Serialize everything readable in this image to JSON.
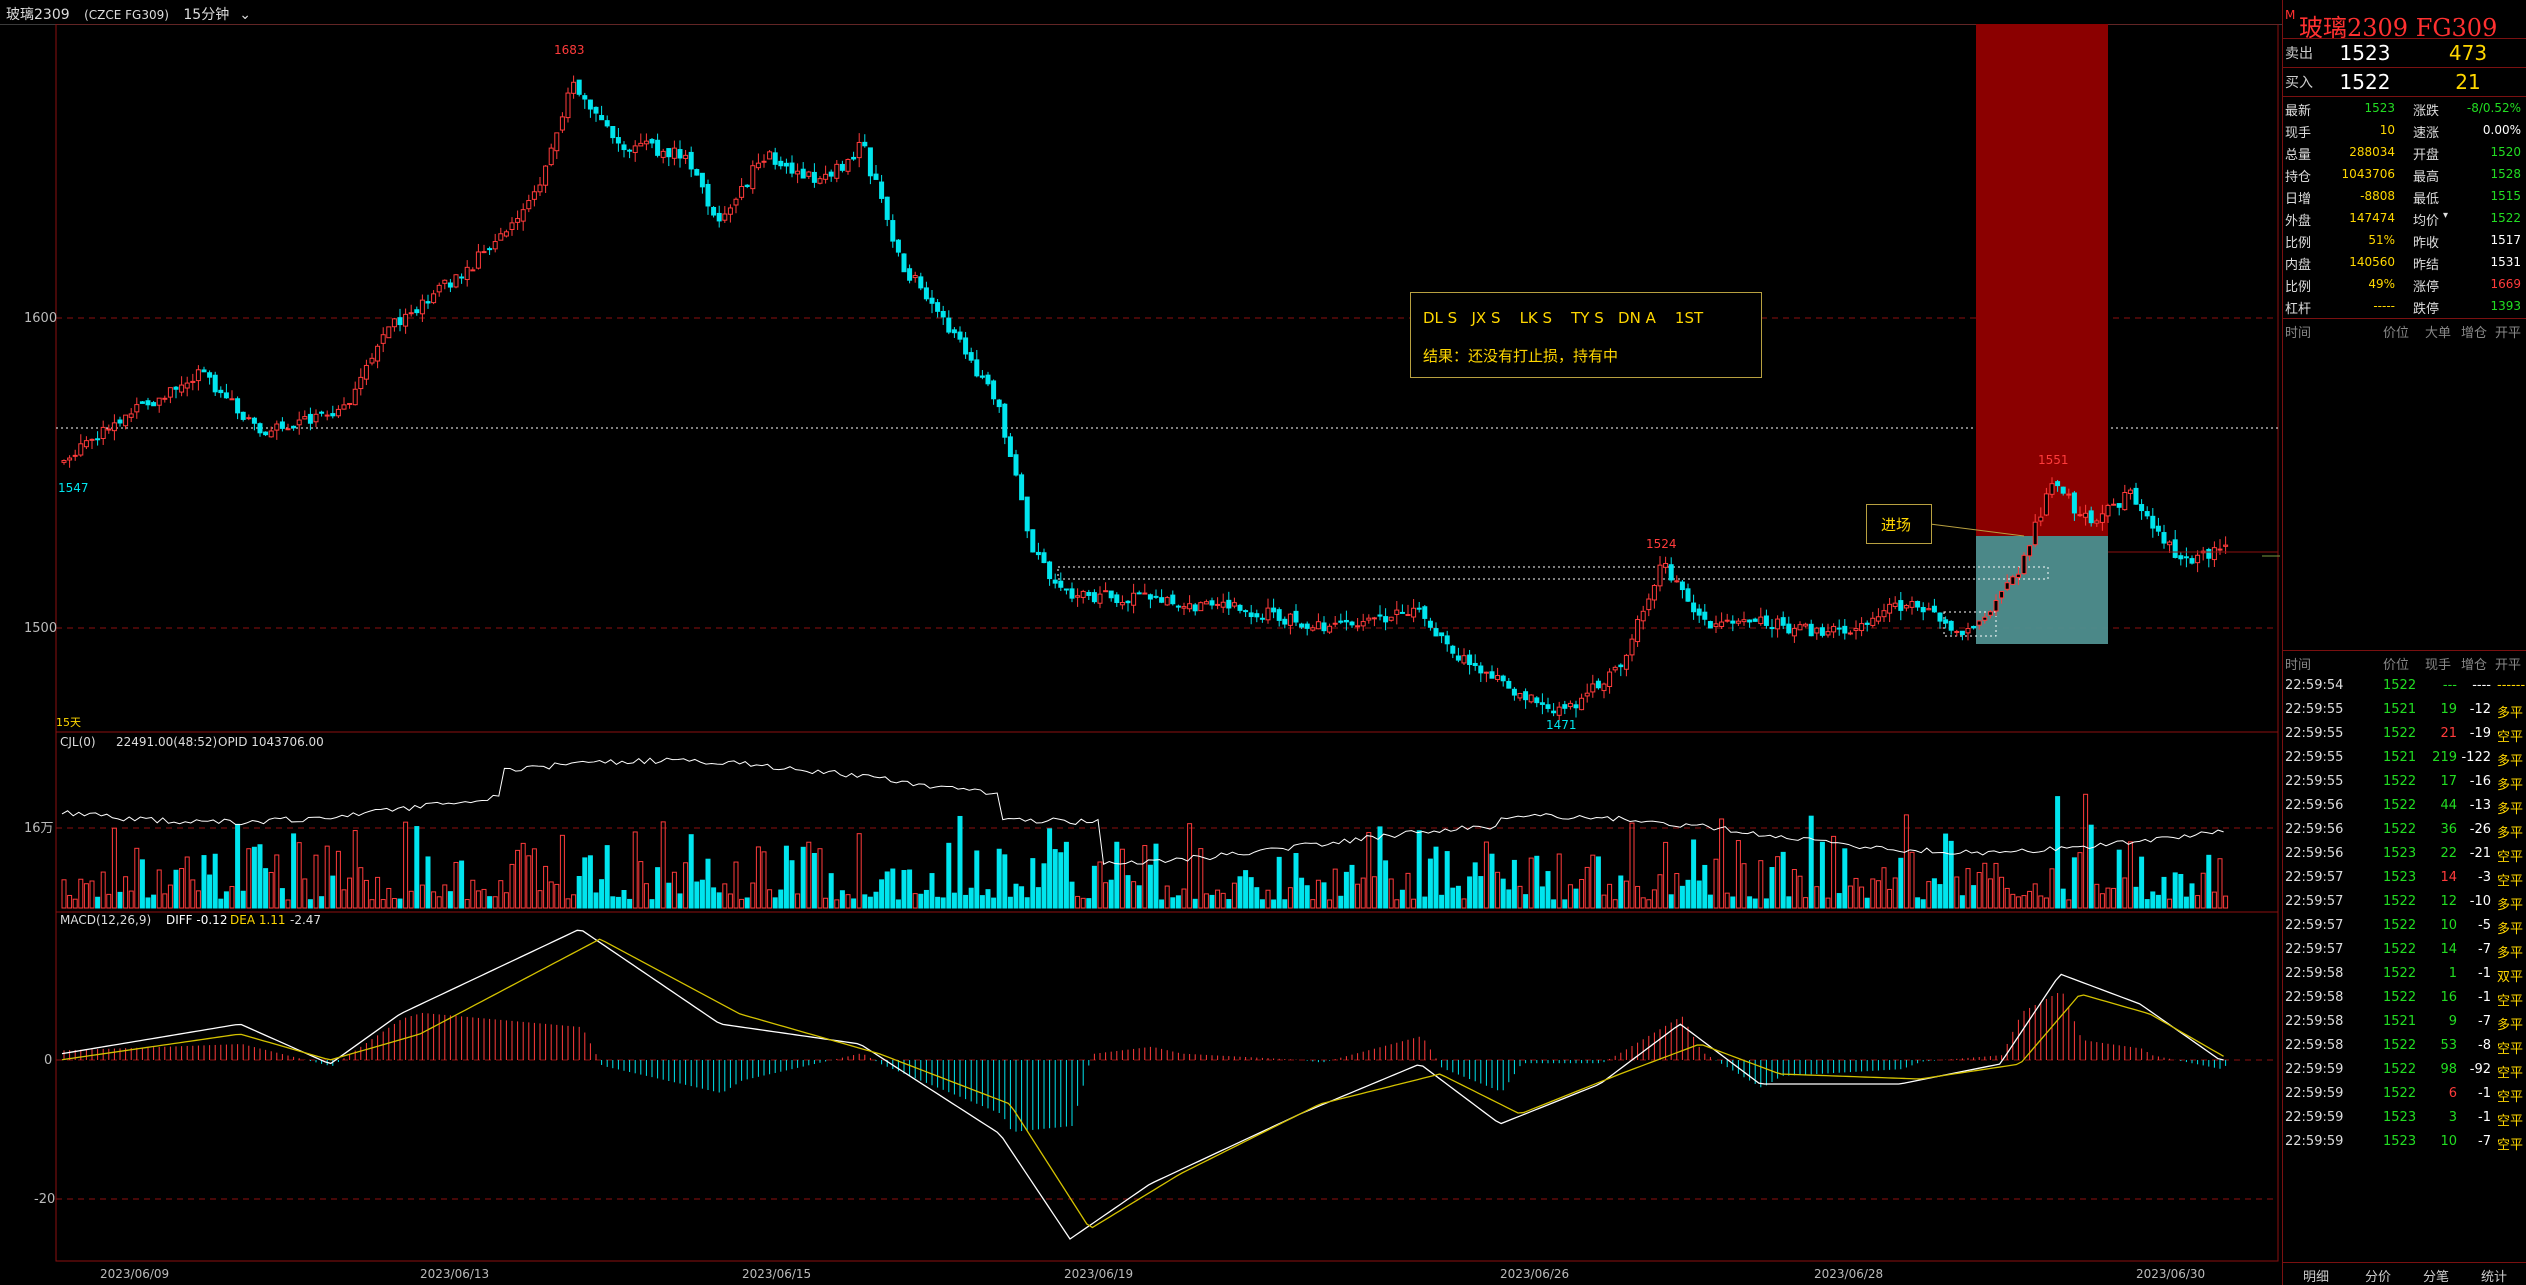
{
  "window": {
    "symbol": "玻璃2309",
    "exchange": "(CZCE FG309)",
    "period": "15分钟",
    "period_icon": "chevron-down-icon",
    "corner_marker": "M"
  },
  "colors": {
    "up": "#ff3b3b",
    "down": "#00e5ee",
    "background": "#000000",
    "grid": "#8b1010",
    "text_yellow": "#ffd700",
    "green_value": "#22dd22"
  },
  "chart": {
    "price_axis_labels": [
      "1600",
      "1500"
    ],
    "price_markers": {
      "high": "1683",
      "low": "1471",
      "left": "1547",
      "peak2": "1551",
      "mid": "1524"
    },
    "days_label": "15天",
    "volume_indicator": {
      "name": "CJL(0)",
      "values": "22491.00(48:52)",
      "opid": "OPID 1043706.00",
      "axis_label": "16万"
    },
    "macd_indicator": {
      "name": "MACD(12,26,9)",
      "diff": "DIFF -0.12",
      "dea": "DEA 1.11",
      "macd": "-2.47",
      "axis_labels": [
        "0",
        "-20"
      ]
    },
    "date_labels": [
      "2023/06/09",
      "2023/06/13",
      "2023/06/15",
      "2023/06/19",
      "2023/06/26",
      "2023/06/28",
      "2023/06/30"
    ],
    "note_line1": "DL S   JX S    LK S    TY S   DN A    1ST",
    "note_line2": "结果：还没有打止损，持有中",
    "entry_label": "进场"
  },
  "quote": {
    "name": "玻璃2309  FG309",
    "ask": {
      "label": "卖出",
      "price": "1523",
      "vol": "473"
    },
    "bid": {
      "label": "买入",
      "price": "1522",
      "vol": "21"
    },
    "stats": [
      {
        "l1": "最新",
        "v1": "1523",
        "c1": "#22dd22",
        "l2": "涨跌",
        "v2": "-8/0.52%",
        "c2": "#22dd22"
      },
      {
        "l1": "现手",
        "v1": "10",
        "c1": "#ffd700",
        "l2": "速涨",
        "v2": "0.00%",
        "c2": "#ffffff"
      },
      {
        "l1": "总量",
        "v1": "288034",
        "c1": "#ffd700",
        "l2": "开盘",
        "v2": "1520",
        "c2": "#22dd22"
      },
      {
        "l1": "持仓",
        "v1": "1043706",
        "c1": "#ffd700",
        "l2": "最高",
        "v2": "1528",
        "c2": "#22dd22"
      },
      {
        "l1": "日增",
        "v1": "-8808",
        "c1": "#ffd700",
        "l2": "最低",
        "v2": "1515",
        "c2": "#22dd22"
      },
      {
        "l1": "外盘",
        "v1": "147474",
        "c1": "#ffd700",
        "l2": "均价",
        "v2": "1522",
        "c2": "#22dd22"
      },
      {
        "l1": "比例",
        "v1": "51%",
        "c1": "#ffd700",
        "l2": "昨收",
        "v2": "1517",
        "c2": "#ffffff"
      },
      {
        "l1": "内盘",
        "v1": "140560",
        "c1": "#ffd700",
        "l2": "昨结",
        "v2": "1531",
        "c2": "#ffffff"
      },
      {
        "l1": "比例",
        "v1": "49%",
        "c1": "#ffd700",
        "l2": "涨停",
        "v2": "1669",
        "c2": "#ff3b3b"
      },
      {
        "l1": "杠杆",
        "v1": "-----",
        "c1": "#ffd700",
        "l2": "跌停",
        "v2": "1393",
        "c2": "#22dd22"
      }
    ],
    "avg_icon": "chevron-down-icon"
  },
  "ticks_header1": {
    "time": "时间",
    "price": "价位",
    "bigorder": "大单",
    "chg": "增仓",
    "open": "开平"
  },
  "ticks_header2": {
    "time": "时间",
    "price": "价位",
    "vol": "现手",
    "chg": "增仓",
    "open": "开平"
  },
  "ticks": [
    {
      "t": "22:59:54",
      "p": "1522",
      "v": "---",
      "c": "----",
      "o": "------",
      "oc": "#ffd700"
    },
    {
      "t": "22:59:55",
      "p": "1521",
      "v": "19",
      "c": "-12",
      "o": "多平",
      "oc": "#ffd700"
    },
    {
      "t": "22:59:55",
      "p": "1522",
      "v": "21",
      "c": "-19",
      "o": "空平",
      "oc": "#ffd700"
    },
    {
      "t": "22:59:55",
      "p": "1521",
      "v": "219",
      "c": "-122",
      "o": "多平",
      "oc": "#ffd700"
    },
    {
      "t": "22:59:55",
      "p": "1522",
      "v": "17",
      "c": "-16",
      "o": "多平",
      "oc": "#ffd700"
    },
    {
      "t": "22:59:56",
      "p": "1522",
      "v": "44",
      "c": "-13",
      "o": "多平",
      "oc": "#ffd700"
    },
    {
      "t": "22:59:56",
      "p": "1522",
      "v": "36",
      "c": "-26",
      "o": "多平",
      "oc": "#ffd700"
    },
    {
      "t": "22:59:56",
      "p": "1523",
      "v": "22",
      "c": "-21",
      "o": "空平",
      "oc": "#ffd700"
    },
    {
      "t": "22:59:57",
      "p": "1523",
      "v": "14",
      "c": "-3",
      "o": "空平",
      "oc": "#ffd700"
    },
    {
      "t": "22:59:57",
      "p": "1522",
      "v": "12",
      "c": "-10",
      "o": "多平",
      "oc": "#ffd700"
    },
    {
      "t": "22:59:57",
      "p": "1522",
      "v": "10",
      "c": "-5",
      "o": "多平",
      "oc": "#ffd700"
    },
    {
      "t": "22:59:57",
      "p": "1522",
      "v": "14",
      "c": "-7",
      "o": "多平",
      "oc": "#ffd700"
    },
    {
      "t": "22:59:58",
      "p": "1522",
      "v": "1",
      "c": "-1",
      "o": "双平",
      "oc": "#ffd700"
    },
    {
      "t": "22:59:58",
      "p": "1522",
      "v": "16",
      "c": "-1",
      "o": "空平",
      "oc": "#ffd700"
    },
    {
      "t": "22:59:58",
      "p": "1521",
      "v": "9",
      "c": "-7",
      "o": "多平",
      "oc": "#ffd700"
    },
    {
      "t": "22:59:58",
      "p": "1522",
      "v": "53",
      "c": "-8",
      "o": "空平",
      "oc": "#ffd700"
    },
    {
      "t": "22:59:59",
      "p": "1522",
      "v": "98",
      "c": "-92",
      "o": "空平",
      "oc": "#ffd700"
    },
    {
      "t": "22:59:59",
      "p": "1522",
      "v": "6",
      "c": "-1",
      "o": "空平",
      "oc": "#ffd700"
    },
    {
      "t": "22:59:59",
      "p": "1523",
      "v": "3",
      "c": "-1",
      "o": "空平",
      "oc": "#ffd700"
    },
    {
      "t": "22:59:59",
      "p": "1523",
      "v": "10",
      "c": "-7",
      "o": "空平",
      "oc": "#ffd700"
    }
  ],
  "tabs": [
    "明细",
    "分价",
    "分笔",
    "统计"
  ]
}
